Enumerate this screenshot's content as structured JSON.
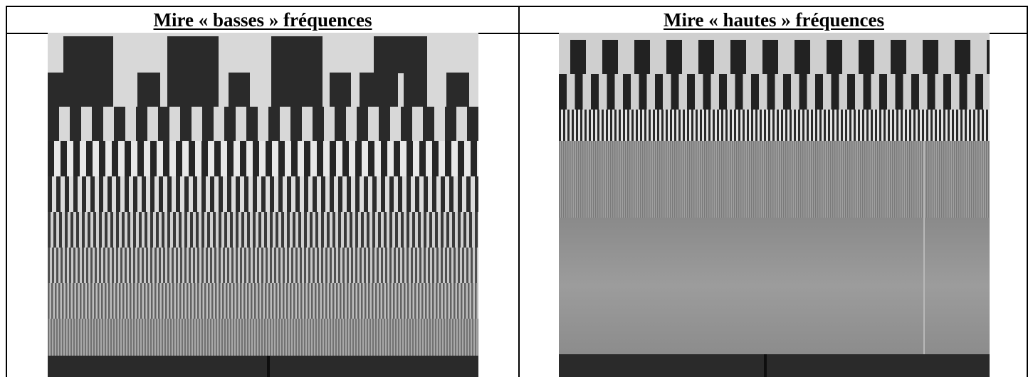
{
  "table": {
    "headers": {
      "left": "Mire « basses » fréquences",
      "right": "Mire « hautes » fréquences"
    }
  },
  "images": {
    "left": {
      "alt": ""
    },
    "right": {
      "alt": ""
    }
  }
}
